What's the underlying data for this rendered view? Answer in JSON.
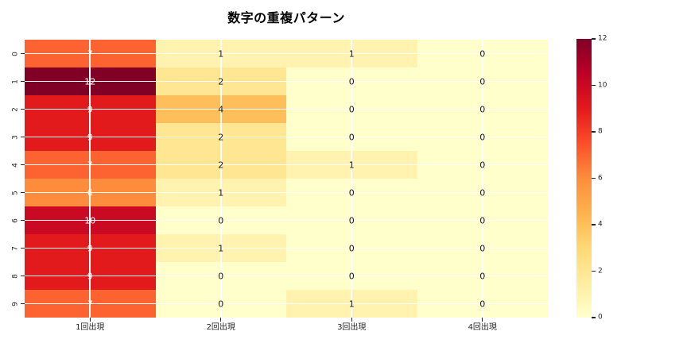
{
  "chart_data": {
    "type": "heatmap",
    "title": "数字の重複パターン",
    "columns": [
      "1回出現",
      "2回出現",
      "3回出現",
      "4回出現"
    ],
    "rows": [
      "0",
      "1",
      "2",
      "3",
      "4",
      "5",
      "6",
      "7",
      "8",
      "9"
    ],
    "values": [
      [
        7,
        1,
        1,
        0
      ],
      [
        12,
        2,
        0,
        0
      ],
      [
        9,
        4,
        0,
        0
      ],
      [
        9,
        2,
        0,
        0
      ],
      [
        7,
        2,
        1,
        0
      ],
      [
        6,
        1,
        0,
        0
      ],
      [
        10,
        0,
        0,
        0
      ],
      [
        9,
        1,
        0,
        0
      ],
      [
        9,
        0,
        0,
        0
      ],
      [
        7,
        0,
        1,
        0
      ]
    ],
    "cell_colors": [
      [
        "#fc6330",
        "#fff3af",
        "#fff3af",
        "#ffffcc"
      ],
      [
        "#800026",
        "#fee692",
        "#ffffcc",
        "#ffffcc"
      ],
      [
        "#e31a1c",
        "#febf5a",
        "#ffffcc",
        "#ffffcc"
      ],
      [
        "#e31a1c",
        "#fee692",
        "#ffffcc",
        "#ffffcc"
      ],
      [
        "#fc6330",
        "#fee692",
        "#fff3af",
        "#ffffcc"
      ],
      [
        "#fd8d3c",
        "#fff3af",
        "#ffffcc",
        "#ffffcc"
      ],
      [
        "#ca0923",
        "#ffffcc",
        "#ffffcc",
        "#ffffcc"
      ],
      [
        "#e31a1c",
        "#fff3af",
        "#ffffcc",
        "#ffffcc"
      ],
      [
        "#e31a1c",
        "#ffffcc",
        "#ffffcc",
        "#ffffcc"
      ],
      [
        "#fc6330",
        "#ffffcc",
        "#fff3af",
        "#ffffcc"
      ]
    ],
    "annot_colors": [
      [
        "#ffffff",
        "#1a1a1a",
        "#1a1a1a",
        "#1a1a1a"
      ],
      [
        "#ffffff",
        "#1a1a1a",
        "#1a1a1a",
        "#1a1a1a"
      ],
      [
        "#ffffff",
        "#1a1a1a",
        "#1a1a1a",
        "#1a1a1a"
      ],
      [
        "#ffffff",
        "#1a1a1a",
        "#1a1a1a",
        "#1a1a1a"
      ],
      [
        "#ffffff",
        "#1a1a1a",
        "#1a1a1a",
        "#1a1a1a"
      ],
      [
        "#ffffff",
        "#1a1a1a",
        "#1a1a1a",
        "#1a1a1a"
      ],
      [
        "#ffffff",
        "#1a1a1a",
        "#1a1a1a",
        "#1a1a1a"
      ],
      [
        "#ffffff",
        "#1a1a1a",
        "#1a1a1a",
        "#1a1a1a"
      ],
      [
        "#ffffff",
        "#1a1a1a",
        "#1a1a1a",
        "#1a1a1a"
      ],
      [
        "#ffffff",
        "#1a1a1a",
        "#1a1a1a",
        "#1a1a1a"
      ]
    ],
    "vmin": 0,
    "vmax": 12,
    "colorbar_ticks": [
      12,
      10,
      8,
      6,
      4,
      2,
      0
    ],
    "colormap_name": "YlOrRd",
    "colormap_stops": [
      "#ffffcc",
      "#ffeda0",
      "#fed976",
      "#feb24c",
      "#fd8d3c",
      "#fc4e2a",
      "#e31a1c",
      "#bd0026",
      "#800026"
    ],
    "gridline_color": "#ffffff",
    "grid": "on",
    "legend": "colorbar-right",
    "xlabel": "",
    "ylabel": ""
  }
}
